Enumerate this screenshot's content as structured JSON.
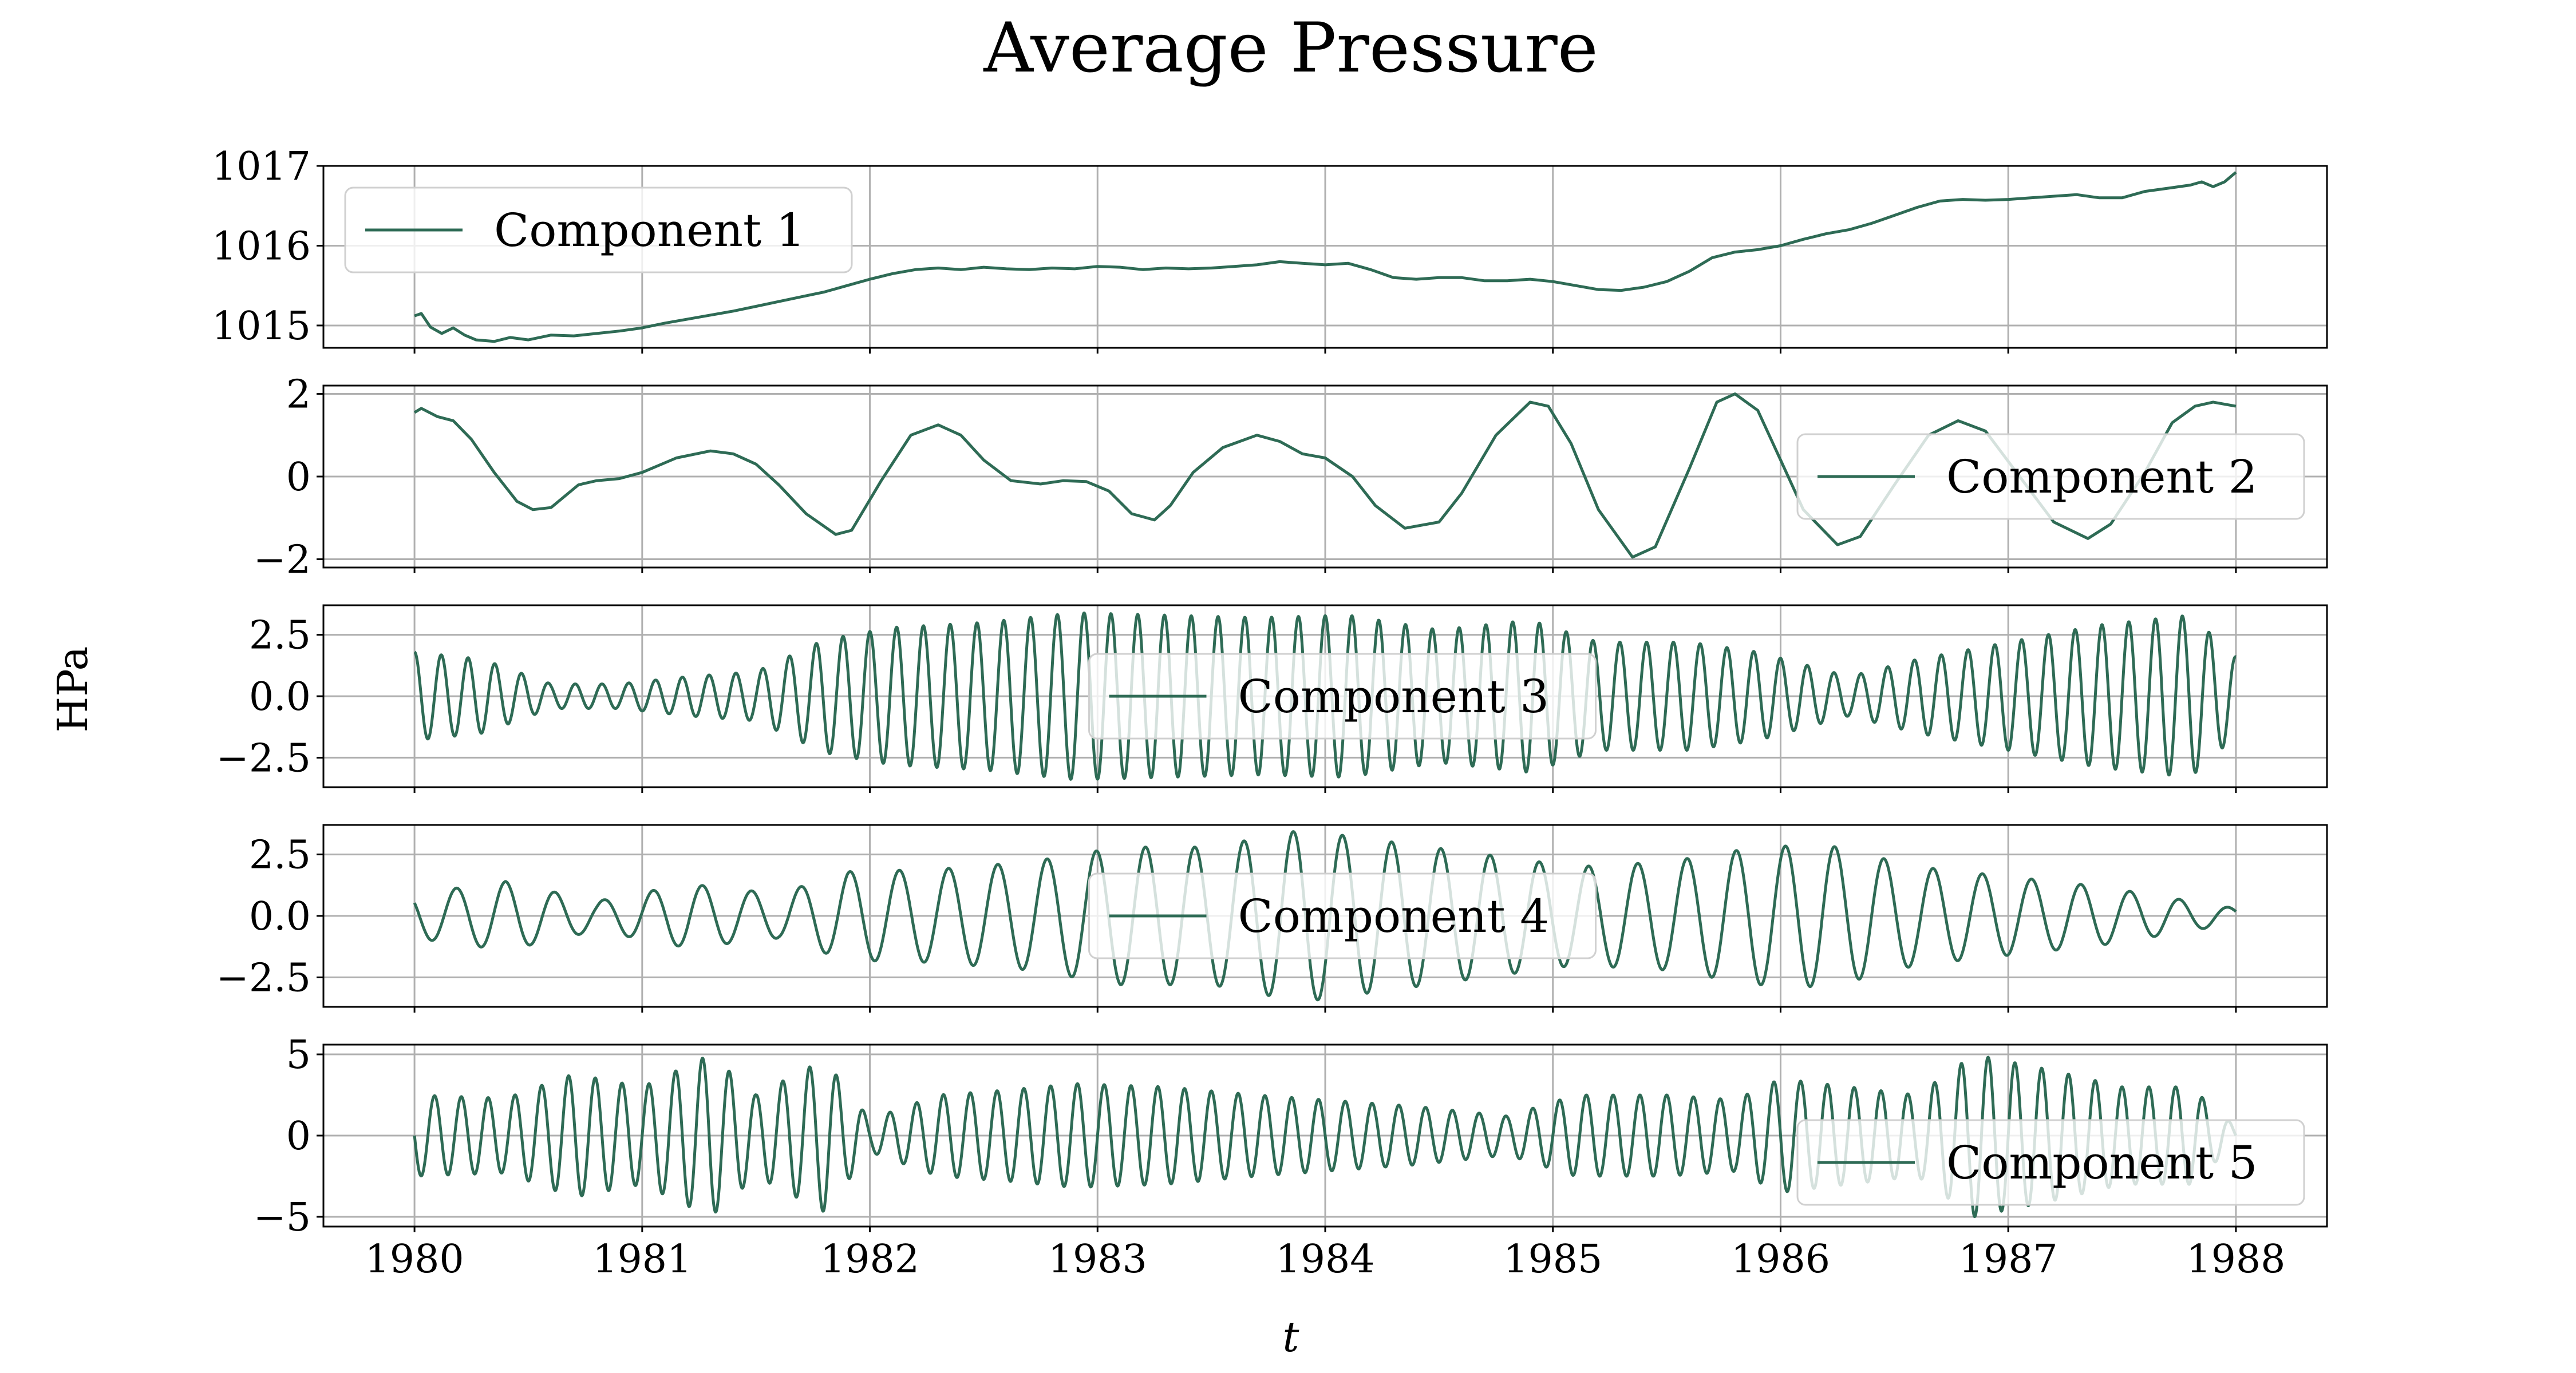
{
  "chart_data": {
    "type": "line",
    "title": "Average Pressure",
    "xlabel": "t",
    "ylabel": "HPa",
    "xlim": [
      1979.6,
      1988.4
    ],
    "xticks": [
      "1980",
      "1981",
      "1982",
      "1983",
      "1984",
      "1985",
      "1986",
      "1987",
      "1988"
    ],
    "grid": true,
    "line_color": "#2e6b55",
    "panels": [
      {
        "name": "Component 1",
        "legend": "upper-left",
        "ylim": [
          1014.72,
          1017.0
        ],
        "yticks": [
          "1015",
          "1016",
          "1017"
        ],
        "kind": "points",
        "x": [
          1980.0,
          1980.03,
          1980.07,
          1980.12,
          1980.17,
          1980.22,
          1980.27,
          1980.35,
          1980.42,
          1980.5,
          1980.6,
          1980.7,
          1980.8,
          1980.9,
          1981.0,
          1981.1,
          1981.2,
          1981.3,
          1981.4,
          1981.5,
          1981.6,
          1981.7,
          1981.8,
          1981.9,
          1982.0,
          1982.1,
          1982.2,
          1982.3,
          1982.4,
          1982.5,
          1982.6,
          1982.7,
          1982.8,
          1982.9,
          1983.0,
          1983.1,
          1983.2,
          1983.3,
          1983.4,
          1983.5,
          1983.6,
          1983.7,
          1983.8,
          1983.9,
          1984.0,
          1984.1,
          1984.2,
          1984.3,
          1984.4,
          1984.5,
          1984.6,
          1984.7,
          1984.8,
          1984.9,
          1985.0,
          1985.1,
          1985.2,
          1985.3,
          1985.4,
          1985.5,
          1985.6,
          1985.7,
          1985.8,
          1985.9,
          1986.0,
          1986.1,
          1986.2,
          1986.3,
          1986.4,
          1986.5,
          1986.6,
          1986.7,
          1986.8,
          1986.9,
          1987.0,
          1987.1,
          1987.2,
          1987.3,
          1987.4,
          1987.5,
          1987.6,
          1987.7,
          1987.8,
          1987.85,
          1987.9,
          1987.95,
          1988.0
        ],
        "y": [
          1015.12,
          1015.15,
          1014.98,
          1014.9,
          1014.97,
          1014.88,
          1014.82,
          1014.8,
          1014.85,
          1014.82,
          1014.88,
          1014.87,
          1014.9,
          1014.93,
          1014.97,
          1015.03,
          1015.08,
          1015.13,
          1015.18,
          1015.24,
          1015.3,
          1015.36,
          1015.42,
          1015.5,
          1015.58,
          1015.65,
          1015.7,
          1015.72,
          1015.7,
          1015.73,
          1015.71,
          1015.7,
          1015.72,
          1015.71,
          1015.74,
          1015.73,
          1015.7,
          1015.72,
          1015.71,
          1015.72,
          1015.74,
          1015.76,
          1015.8,
          1015.78,
          1015.76,
          1015.78,
          1015.7,
          1015.6,
          1015.58,
          1015.6,
          1015.6,
          1015.56,
          1015.56,
          1015.58,
          1015.55,
          1015.5,
          1015.45,
          1015.44,
          1015.48,
          1015.55,
          1015.68,
          1015.85,
          1015.92,
          1015.95,
          1016.0,
          1016.08,
          1016.15,
          1016.2,
          1016.28,
          1016.38,
          1016.48,
          1016.56,
          1016.58,
          1016.57,
          1016.58,
          1016.6,
          1016.62,
          1016.64,
          1016.6,
          1016.6,
          1016.68,
          1016.72,
          1016.76,
          1016.8,
          1016.74,
          1016.8,
          1016.92
        ]
      },
      {
        "name": "Component 2",
        "legend": "right",
        "ylim": [
          -2.2,
          2.2
        ],
        "yticks": [
          "2",
          "0",
          "−2"
        ],
        "kind": "points",
        "x": [
          1980.0,
          1980.03,
          1980.1,
          1980.17,
          1980.25,
          1980.35,
          1980.45,
          1980.52,
          1980.6,
          1980.72,
          1980.8,
          1980.9,
          1981.0,
          1981.15,
          1981.3,
          1981.4,
          1981.5,
          1981.6,
          1981.72,
          1981.85,
          1981.92,
          1982.05,
          1982.18,
          1982.3,
          1982.4,
          1982.5,
          1982.62,
          1982.75,
          1982.85,
          1982.95,
          1983.05,
          1983.15,
          1983.25,
          1983.32,
          1983.42,
          1983.55,
          1983.7,
          1983.8,
          1983.9,
          1984.0,
          1984.12,
          1984.22,
          1984.35,
          1984.5,
          1984.6,
          1984.75,
          1984.9,
          1984.98,
          1985.08,
          1985.2,
          1985.35,
          1985.45,
          1985.6,
          1985.72,
          1985.8,
          1985.9,
          1986.0,
          1986.1,
          1986.25,
          1986.35,
          1986.5,
          1986.65,
          1986.78,
          1986.9,
          1987.05,
          1987.2,
          1987.35,
          1987.45,
          1987.6,
          1987.72,
          1987.82,
          1987.9,
          1988.0
        ],
        "y": [
          1.55,
          1.65,
          1.45,
          1.35,
          0.9,
          0.1,
          -0.6,
          -0.8,
          -0.75,
          -0.2,
          -0.1,
          -0.05,
          0.1,
          0.45,
          0.62,
          0.55,
          0.3,
          -0.2,
          -0.9,
          -1.4,
          -1.3,
          -0.1,
          1.0,
          1.25,
          1.0,
          0.4,
          -0.1,
          -0.18,
          -0.1,
          -0.12,
          -0.35,
          -0.9,
          -1.05,
          -0.7,
          0.1,
          0.7,
          1.0,
          0.85,
          0.55,
          0.45,
          0.0,
          -0.7,
          -1.25,
          -1.1,
          -0.4,
          1.0,
          1.8,
          1.7,
          0.8,
          -0.8,
          -1.95,
          -1.7,
          0.2,
          1.8,
          2.0,
          1.6,
          0.4,
          -0.8,
          -1.65,
          -1.45,
          -0.2,
          1.0,
          1.35,
          1.1,
          0.0,
          -1.1,
          -1.5,
          -1.15,
          0.1,
          1.3,
          1.7,
          1.8,
          1.7
        ]
      },
      {
        "name": "Component 3",
        "legend": "center",
        "ylim": [
          -3.7,
          3.7
        ],
        "yticks": [
          "2.5",
          "0.0",
          "−2.5"
        ],
        "kind": "oscillation",
        "cycles": 68,
        "phase": 0.0,
        "amp_knots": [
          [
            1980.0,
            1.8
          ],
          [
            1980.3,
            1.5
          ],
          [
            1980.6,
            0.5
          ],
          [
            1980.9,
            0.5
          ],
          [
            1981.2,
            0.8
          ],
          [
            1981.5,
            1.0
          ],
          [
            1981.8,
            2.3
          ],
          [
            1982.1,
            2.8
          ],
          [
            1982.5,
            3.0
          ],
          [
            1982.9,
            3.4
          ],
          [
            1983.3,
            3.3
          ],
          [
            1983.7,
            3.2
          ],
          [
            1984.1,
            3.3
          ],
          [
            1984.5,
            2.7
          ],
          [
            1984.9,
            3.1
          ],
          [
            1985.2,
            2.2
          ],
          [
            1985.6,
            2.2
          ],
          [
            1985.9,
            1.8
          ],
          [
            1986.3,
            0.8
          ],
          [
            1986.6,
            1.5
          ],
          [
            1987.0,
            2.2
          ],
          [
            1987.4,
            2.9
          ],
          [
            1987.8,
            3.3
          ],
          [
            1988.0,
            1.6
          ]
        ]
      },
      {
        "name": "Component 4",
        "legend": "center",
        "ylim": [
          -3.7,
          3.7
        ],
        "yticks": [
          "2.5",
          "0.0",
          "−2.5"
        ],
        "kind": "oscillation",
        "cycles": 37,
        "phase": 0.15,
        "amp_knots": [
          [
            1980.0,
            0.9
          ],
          [
            1980.4,
            1.4
          ],
          [
            1980.8,
            0.6
          ],
          [
            1981.2,
            1.3
          ],
          [
            1981.6,
            0.9
          ],
          [
            1981.9,
            1.8
          ],
          [
            1982.3,
            1.9
          ],
          [
            1982.7,
            2.2
          ],
          [
            1983.1,
            2.8
          ],
          [
            1983.5,
            2.8
          ],
          [
            1983.9,
            3.5
          ],
          [
            1984.3,
            3.0
          ],
          [
            1984.7,
            2.5
          ],
          [
            1985.1,
            2.0
          ],
          [
            1985.5,
            2.2
          ],
          [
            1985.9,
            2.8
          ],
          [
            1986.2,
            2.9
          ],
          [
            1986.6,
            2.0
          ],
          [
            1987.0,
            1.6
          ],
          [
            1987.4,
            1.2
          ],
          [
            1987.8,
            0.6
          ],
          [
            1988.0,
            0.3
          ]
        ]
      },
      {
        "name": "Component 5",
        "legend": "lower-right",
        "ylim": [
          -5.6,
          5.6
        ],
        "yticks": [
          "5",
          "0",
          "−5"
        ],
        "kind": "oscillation",
        "cycles": 68,
        "phase": 0.25,
        "amp_knots": [
          [
            1980.0,
            2.5
          ],
          [
            1980.4,
            2.3
          ],
          [
            1980.7,
            3.8
          ],
          [
            1981.0,
            3.0
          ],
          [
            1981.3,
            5.0
          ],
          [
            1981.5,
            2.5
          ],
          [
            1981.8,
            4.7
          ],
          [
            1982.0,
            1.0
          ],
          [
            1982.3,
            2.5
          ],
          [
            1982.6,
            2.8
          ],
          [
            1982.9,
            3.2
          ],
          [
            1983.3,
            3.0
          ],
          [
            1983.7,
            2.5
          ],
          [
            1984.0,
            2.2
          ],
          [
            1984.4,
            1.8
          ],
          [
            1984.8,
            1.2
          ],
          [
            1985.1,
            2.5
          ],
          [
            1985.5,
            2.5
          ],
          [
            1985.8,
            2.2
          ],
          [
            1986.0,
            3.5
          ],
          [
            1986.3,
            3.0
          ],
          [
            1986.6,
            2.5
          ],
          [
            1986.85,
            5.0
          ],
          [
            1987.2,
            4.0
          ],
          [
            1987.5,
            3.0
          ],
          [
            1987.8,
            3.0
          ],
          [
            1988.0,
            0.5
          ]
        ]
      }
    ]
  }
}
